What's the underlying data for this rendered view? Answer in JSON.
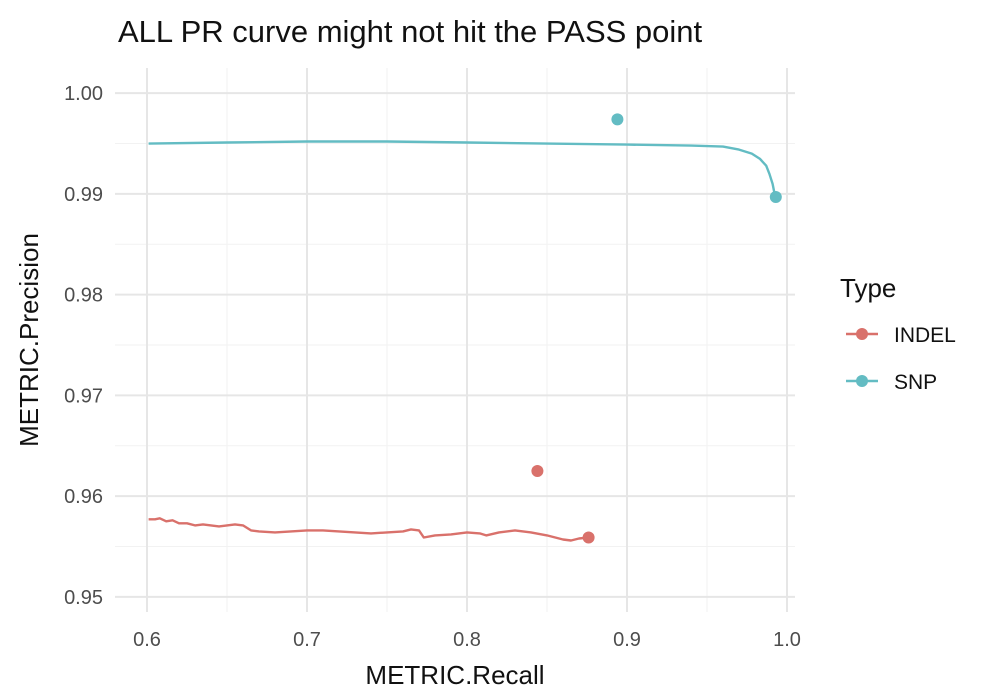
{
  "chart_data": {
    "type": "line",
    "title": "ALL PR curve might not hit the PASS point",
    "xlabel": "METRIC.Recall",
    "ylabel": "METRIC.Precision",
    "xlim": [
      0.58,
      1.005
    ],
    "ylim": [
      0.9485,
      1.0025
    ],
    "x_ticks": [
      0.6,
      0.7,
      0.8,
      0.9,
      1.0
    ],
    "x_tick_labels": [
      "0.6",
      "0.7",
      "0.8",
      "0.9",
      "1.0"
    ],
    "y_ticks": [
      0.95,
      0.96,
      0.97,
      0.98,
      0.99,
      1.0
    ],
    "y_tick_labels": [
      "0.95",
      "0.96",
      "0.97",
      "0.98",
      "0.99",
      "1.00"
    ],
    "grid": true,
    "legend": {
      "title": "Type",
      "position": "right"
    },
    "series": [
      {
        "name": "INDEL",
        "color": "#d9716b",
        "curve": [
          [
            0.601,
            0.9577
          ],
          [
            0.605,
            0.9577
          ],
          [
            0.608,
            0.9578
          ],
          [
            0.612,
            0.9575
          ],
          [
            0.616,
            0.9576
          ],
          [
            0.62,
            0.9573
          ],
          [
            0.625,
            0.9573
          ],
          [
            0.63,
            0.9571
          ],
          [
            0.635,
            0.9572
          ],
          [
            0.64,
            0.9571
          ],
          [
            0.645,
            0.957
          ],
          [
            0.65,
            0.9571
          ],
          [
            0.655,
            0.9572
          ],
          [
            0.66,
            0.9571
          ],
          [
            0.665,
            0.9566
          ],
          [
            0.67,
            0.9565
          ],
          [
            0.68,
            0.9564
          ],
          [
            0.69,
            0.9565
          ],
          [
            0.7,
            0.9566
          ],
          [
            0.71,
            0.9566
          ],
          [
            0.72,
            0.9565
          ],
          [
            0.73,
            0.9564
          ],
          [
            0.74,
            0.9563
          ],
          [
            0.75,
            0.9564
          ],
          [
            0.76,
            0.9565
          ],
          [
            0.765,
            0.9567
          ],
          [
            0.77,
            0.9566
          ],
          [
            0.773,
            0.9559
          ],
          [
            0.78,
            0.9561
          ],
          [
            0.79,
            0.9562
          ],
          [
            0.8,
            0.9564
          ],
          [
            0.808,
            0.9563
          ],
          [
            0.812,
            0.9561
          ],
          [
            0.82,
            0.9564
          ],
          [
            0.83,
            0.9566
          ],
          [
            0.84,
            0.9564
          ],
          [
            0.85,
            0.9561
          ],
          [
            0.86,
            0.9557
          ],
          [
            0.865,
            0.9556
          ],
          [
            0.87,
            0.9558
          ],
          [
            0.876,
            0.9559
          ]
        ],
        "points": [
          {
            "x": 0.844,
            "y": 0.9625
          },
          {
            "x": 0.876,
            "y": 0.9559
          }
        ]
      },
      {
        "name": "SNP",
        "color": "#63bcc3",
        "curve": [
          [
            0.601,
            0.995
          ],
          [
            0.65,
            0.9951
          ],
          [
            0.7,
            0.9952
          ],
          [
            0.75,
            0.9952
          ],
          [
            0.8,
            0.9951
          ],
          [
            0.85,
            0.995
          ],
          [
            0.9,
            0.9949
          ],
          [
            0.94,
            0.9948
          ],
          [
            0.96,
            0.9947
          ],
          [
            0.97,
            0.9944
          ],
          [
            0.978,
            0.994
          ],
          [
            0.983,
            0.9935
          ],
          [
            0.987,
            0.9928
          ],
          [
            0.989,
            0.992
          ],
          [
            0.991,
            0.991
          ],
          [
            0.992,
            0.9902
          ],
          [
            0.993,
            0.9897
          ]
        ],
        "points": [
          {
            "x": 0.894,
            "y": 0.9974
          },
          {
            "x": 0.993,
            "y": 0.9897
          }
        ]
      }
    ]
  }
}
